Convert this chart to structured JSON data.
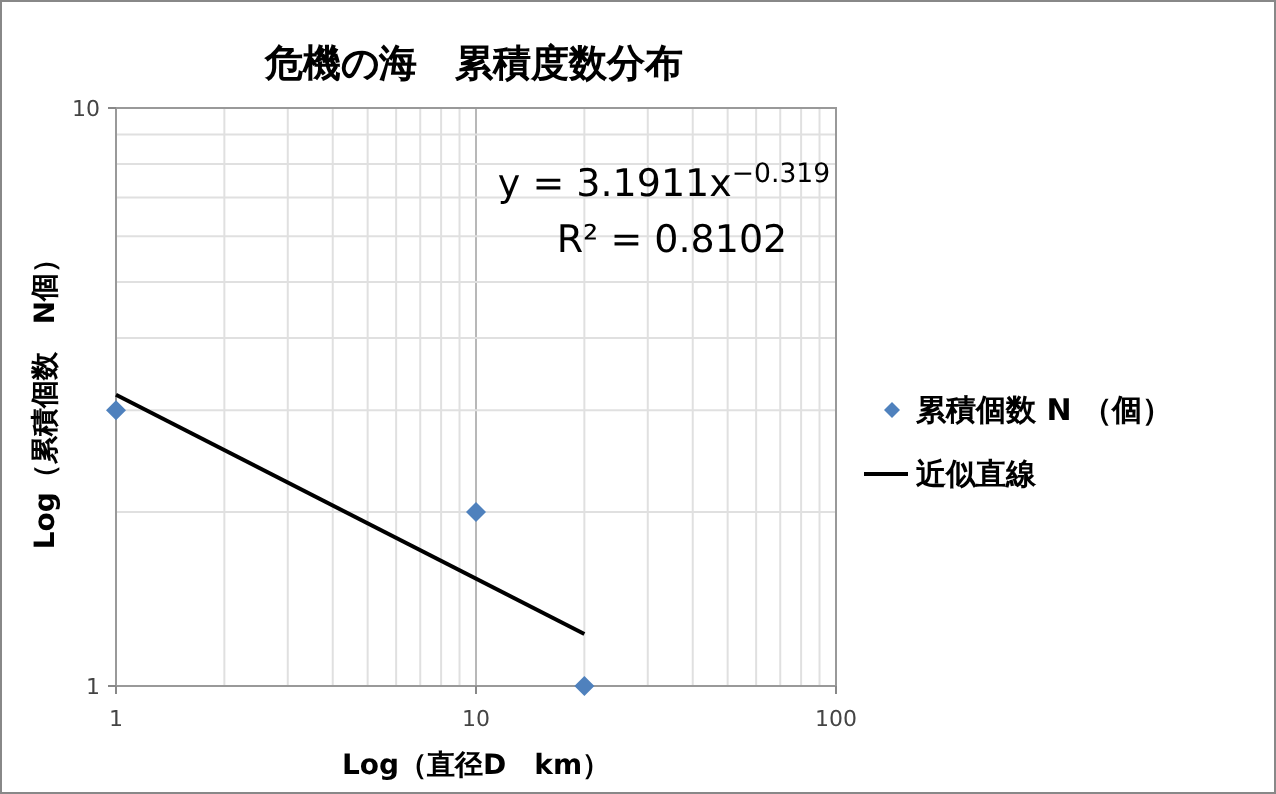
{
  "chart_data": {
    "type": "scatter",
    "title": "危機の海　累積度数分布",
    "xlabel": "Log（直径D　km）",
    "ylabel": "Log（累積個数　N個）",
    "log": "xy",
    "xlim": [
      1,
      100
    ],
    "ylim": [
      1,
      10
    ],
    "xticks": [
      1,
      10,
      100
    ],
    "yticks": [
      1,
      10
    ],
    "grid": true,
    "legend": "right",
    "series": [
      {
        "name": "累積個数  N （個）",
        "marker": "diamond",
        "color": "#4f81bd",
        "x": [
          1,
          10,
          20
        ],
        "values": [
          3,
          2,
          1
        ]
      },
      {
        "name": "近似直線",
        "type": "line",
        "color": "#000000",
        "x": [
          1,
          20
        ],
        "values": [
          3.19,
          1.23
        ]
      }
    ],
    "annotations": [
      {
        "text": "y = 3.1911x$^{−0.319}$"
      },
      {
        "text": "R² = 0.8102"
      }
    ]
  }
}
